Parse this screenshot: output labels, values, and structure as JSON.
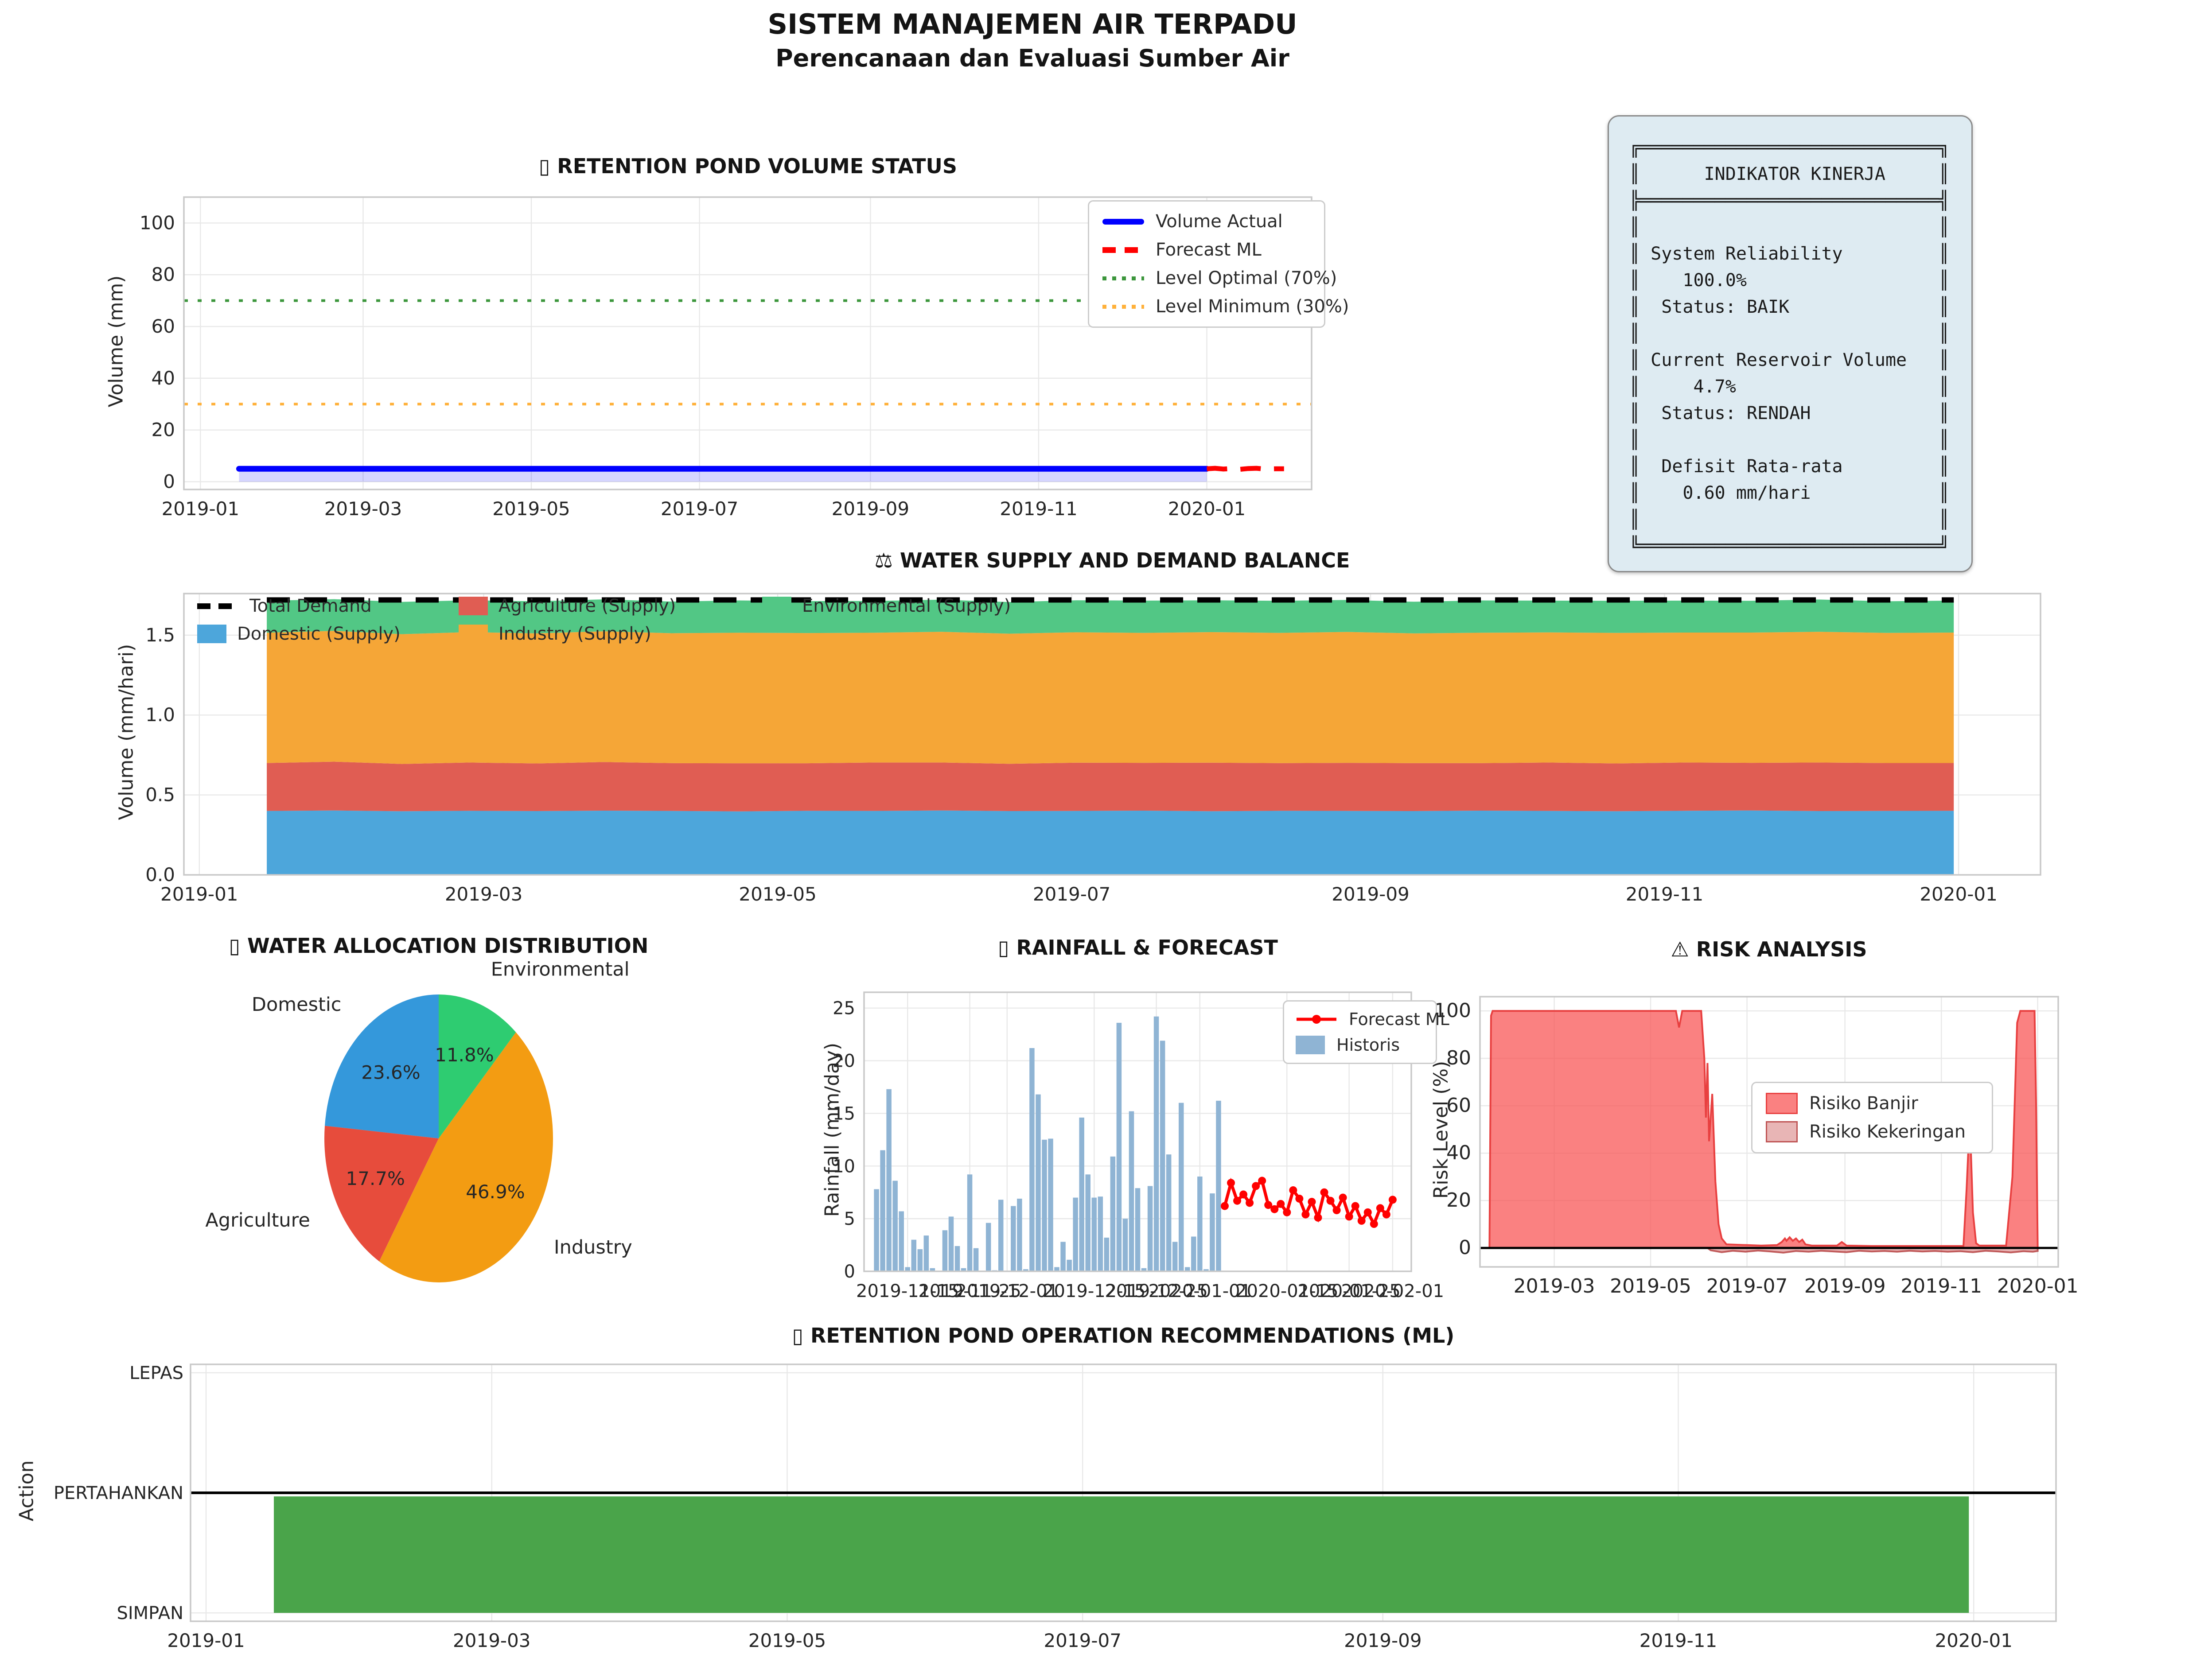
{
  "header": {
    "title": "SISTEM MANAJEMEN AIR TERPADU",
    "subtitle": "Perencanaan dan Evaluasi Sumber Air"
  },
  "indicator_panel": {
    "lines": [
      "╔════════════════════════════╗",
      "║      INDIKATOR KINERJA     ║",
      "╠════════════════════════════╣",
      "║                            ║",
      "║ System Reliability         ║",
      "║    100.0%                  ║",
      "║  Status: BAIK              ║",
      "║                            ║",
      "║ Current Reservoir Volume   ║",
      "║     4.7%                   ║",
      "║  Status: RENDAH            ║",
      "║                            ║",
      "║  Defisit Rata-rata         ║",
      "║    0.60 mm/hari            ║",
      "║                            ║",
      "╚════════════════════════════╝"
    ],
    "system_reliability": "100.0%",
    "reliability_status": "BAIK",
    "current_reservoir_volume": "4.7%",
    "reservoir_status": "RENDAH",
    "average_deficit": "0.60 mm/hari"
  },
  "chart_data": [
    {
      "id": "volume",
      "type": "line",
      "title": "▯ RETENTION POND VOLUME STATUS",
      "ylabel": "Volume (mm)",
      "ylim": [
        -3,
        110
      ],
      "yticks": [
        {
          "label": "0",
          "v": 0
        },
        {
          "label": "20",
          "v": 20
        },
        {
          "label": "40",
          "v": 40
        },
        {
          "label": "60",
          "v": 60
        },
        {
          "label": "80",
          "v": 80
        },
        {
          "label": "100",
          "v": 100
        }
      ],
      "xticks": [
        {
          "label": "2019-01",
          "d": 0
        },
        {
          "label": "2019-03",
          "d": 59
        },
        {
          "label": "2019-05",
          "d": 120
        },
        {
          "label": "2019-07",
          "d": 181
        },
        {
          "label": "2019-09",
          "d": 243
        },
        {
          "label": "2019-11",
          "d": 304
        },
        {
          "label": "2020-01",
          "d": 365
        }
      ],
      "series": {
        "actual": {
          "label": "Volume Actual",
          "color": "#0000ff",
          "fill": "rgba(0,0,255,0.16)",
          "points": [
            [
              14,
              5.0
            ],
            [
              365,
              5.0
            ]
          ]
        },
        "forecast": {
          "label": "Forecast ML",
          "color": "#ff0000",
          "points": [
            [
              365,
              5.0
            ],
            [
              368,
              5.2
            ],
            [
              371,
              4.9
            ],
            [
              374,
              5.1
            ],
            [
              377,
              4.8
            ],
            [
              380,
              5.1
            ],
            [
              383,
              5.2
            ],
            [
              386,
              4.9
            ],
            [
              390,
              5.0
            ],
            [
              393,
              5.0
            ]
          ]
        },
        "optimal": {
          "label": "Level Optimal (70%)",
          "color": "#3c963c",
          "value": 70
        },
        "minimum": {
          "label": "Level Minimum (30%)",
          "color": "#ffb13b",
          "value": 30
        }
      }
    },
    {
      "id": "balance",
      "type": "stacked-area",
      "title": "⚖ WATER SUPPLY AND DEMAND BALANCE",
      "ylabel": "Volume (mm/hari)",
      "ylim": [
        0,
        1.76
      ],
      "yticks": [
        {
          "label": "0.0",
          "v": 0
        },
        {
          "label": "0.5",
          "v": 0.5
        },
        {
          "label": "1.0",
          "v": 1.0
        },
        {
          "label": "1.5",
          "v": 1.5
        }
      ],
      "xticks": [
        {
          "label": "2019-01",
          "d": 0
        },
        {
          "label": "2019-03",
          "d": 59
        },
        {
          "label": "2019-05",
          "d": 120
        },
        {
          "label": "2019-07",
          "d": 181
        },
        {
          "label": "2019-09",
          "d": 243
        },
        {
          "label": "2019-11",
          "d": 304
        },
        {
          "label": "2020-01",
          "d": 365
        }
      ],
      "days": [
        14,
        28,
        42,
        56,
        70,
        84,
        98,
        112,
        126,
        140,
        154,
        168,
        182,
        196,
        210,
        224,
        238,
        252,
        266,
        280,
        294,
        308,
        322,
        336,
        350,
        364
      ],
      "series": [
        {
          "label": "Domestic (Supply)",
          "color": "#4da6db",
          "values": [
            0.4,
            0.403,
            0.398,
            0.401,
            0.399,
            0.402,
            0.4,
            0.397,
            0.401,
            0.4,
            0.403,
            0.399,
            0.4,
            0.402,
            0.398,
            0.401,
            0.4,
            0.399,
            0.402,
            0.4,
            0.398,
            0.401,
            0.403,
            0.399,
            0.4,
            0.401
          ]
        },
        {
          "label": "Agriculture (Supply)",
          "color": "#e05d53",
          "values": [
            0.3,
            0.305,
            0.296,
            0.302,
            0.298,
            0.304,
            0.299,
            0.301,
            0.297,
            0.303,
            0.3,
            0.296,
            0.302,
            0.299,
            0.304,
            0.298,
            0.301,
            0.3,
            0.297,
            0.303,
            0.299,
            0.302,
            0.298,
            0.304,
            0.3,
            0.299
          ]
        },
        {
          "label": "Industry (Supply)",
          "color": "#f5a637",
          "values": [
            0.815,
            0.819,
            0.812,
            0.816,
            0.814,
            0.818,
            0.813,
            0.817,
            0.815,
            0.812,
            0.818,
            0.814,
            0.816,
            0.813,
            0.817,
            0.815,
            0.819,
            0.812,
            0.816,
            0.814,
            0.817,
            0.813,
            0.815,
            0.818,
            0.814,
            0.816
          ]
        },
        {
          "label": "Environmental (Supply)",
          "color": "#52c785",
          "values": [
            0.2,
            0.198,
            0.202,
            0.199,
            0.201,
            0.2,
            0.198,
            0.202,
            0.2,
            0.199,
            0.201,
            0.198,
            0.2,
            0.202,
            0.199,
            0.201,
            0.2,
            0.198,
            0.202,
            0.199,
            0.201,
            0.2,
            0.199,
            0.202,
            0.198,
            0.2
          ]
        }
      ],
      "total_demand": {
        "label": "Total Demand",
        "color": "#000000",
        "value": 1.72
      }
    },
    {
      "id": "allocation",
      "type": "pie",
      "title": "▯ WATER ALLOCATION DISTRIBUTION",
      "start_angle": 90,
      "counterclock": true,
      "slices": [
        {
          "label": "Domestic",
          "pct": 23.6,
          "pct_label": "23.6%",
          "color": "#3498db"
        },
        {
          "label": "Agriculture",
          "pct": 17.7,
          "pct_label": "17.7%",
          "color": "#e74c3c"
        },
        {
          "label": "Industry",
          "pct": 46.9,
          "pct_label": "46.9%",
          "color": "#f39c12"
        },
        {
          "label": "Environmental",
          "pct": 11.8,
          "pct_label": "11.8%",
          "color": "#2ecc71"
        }
      ]
    },
    {
      "id": "rainfall",
      "type": "bar+line",
      "title": "▯ RAINFALL & FORECAST",
      "ylabel": "Rainfall (mm/day)",
      "ylim": [
        0,
        26.5
      ],
      "yticks": [
        {
          "label": "0",
          "v": 0
        },
        {
          "label": "5",
          "v": 5
        },
        {
          "label": "10",
          "v": 10
        },
        {
          "label": "15",
          "v": 15
        },
        {
          "label": "20",
          "v": 20
        },
        {
          "label": "25",
          "v": 25
        }
      ],
      "xticks": [
        {
          "label": "2019-11-15",
          "d": 5
        },
        {
          "label": "2019-11-25",
          "d": 15
        },
        {
          "label": "2019-12-01",
          "d": 21
        },
        {
          "label": "2019-12-15",
          "d": 35
        },
        {
          "label": "2019-12-25",
          "d": 45
        },
        {
          "label": "2020-01-01",
          "d": 52
        },
        {
          "label": "2020-01-15",
          "d": 66
        },
        {
          "label": "2020-01-25",
          "d": 76
        },
        {
          "label": "2020-02-01",
          "d": 83
        }
      ],
      "bars": {
        "label": "Historis",
        "color": "#8fb4d4",
        "start_day": 0,
        "values": [
          7.8,
          11.5,
          17.3,
          8.6,
          5.7,
          0.4,
          3.0,
          2.1,
          3.4,
          0.3,
          0.0,
          3.9,
          5.2,
          2.4,
          0.3,
          9.2,
          2.2,
          0.0,
          4.6,
          0.1,
          6.8,
          0.0,
          6.2,
          6.9,
          0.2,
          21.2,
          16.8,
          12.5,
          12.6,
          0.4,
          2.8,
          1.1,
          7.0,
          14.6,
          9.2,
          7.0,
          7.1,
          3.2,
          10.9,
          23.6,
          5.0,
          15.2,
          7.9,
          0.3,
          8.1,
          24.2,
          21.9,
          11.1,
          2.8,
          16.0,
          0.4,
          3.3,
          9.0,
          0.2,
          7.4,
          16.2
        ]
      },
      "forecast": {
        "label": "Forecast ML",
        "color": "#ff0000",
        "start_day": 56,
        "values": [
          6.2,
          8.4,
          6.7,
          7.3,
          6.5,
          8.1,
          8.6,
          6.3,
          5.9,
          6.4,
          5.6,
          7.7,
          6.9,
          5.4,
          6.6,
          5.1,
          7.5,
          6.7,
          5.8,
          7.0,
          5.2,
          6.2,
          4.8,
          5.6,
          4.5,
          6.0,
          5.4,
          6.8
        ]
      }
    },
    {
      "id": "risk",
      "type": "area",
      "title": "⚠ RISK ANALYSIS",
      "ylabel": "Risk Level (%)",
      "ylim": [
        -8,
        106
      ],
      "yticks": [
        {
          "label": "0",
          "v": 0
        },
        {
          "label": "20",
          "v": 20
        },
        {
          "label": "40",
          "v": 40
        },
        {
          "label": "60",
          "v": 60
        },
        {
          "label": "80",
          "v": 80
        },
        {
          "label": "100",
          "v": 100
        }
      ],
      "xticks": [
        {
          "label": "2019-03",
          "d": 59
        },
        {
          "label": "2019-05",
          "d": 120
        },
        {
          "label": "2019-07",
          "d": 181
        },
        {
          "label": "2019-09",
          "d": 243
        },
        {
          "label": "2019-11",
          "d": 304
        },
        {
          "label": "2020-01",
          "d": 365
        }
      ],
      "series": [
        {
          "label": "Risiko Banjir",
          "color": "rgba(248,80,80,0.72)",
          "edge": "#e84040",
          "points": [
            [
              18,
              0
            ],
            [
              19,
              98
            ],
            [
              20,
              100
            ],
            [
              130,
              100
            ],
            [
              136,
              100
            ],
            [
              138,
              93
            ],
            [
              140,
              100
            ],
            [
              152,
              100
            ],
            [
              154,
              80
            ],
            [
              155,
              55
            ],
            [
              156,
              78
            ],
            [
              157,
              45
            ],
            [
              159,
              65
            ],
            [
              161,
              28
            ],
            [
              163,
              10
            ],
            [
              165,
              4
            ],
            [
              168,
              1.5
            ],
            [
              190,
              1
            ],
            [
              200,
              1.2
            ],
            [
              203,
              2.5
            ],
            [
              205,
              4
            ],
            [
              206,
              3
            ],
            [
              208,
              4.5
            ],
            [
              210,
              3
            ],
            [
              212,
              4
            ],
            [
              214,
              2.5
            ],
            [
              216,
              3.5
            ],
            [
              218,
              1.5
            ],
            [
              222,
              1
            ],
            [
              238,
              1
            ],
            [
              241,
              2.5
            ],
            [
              244,
              1
            ],
            [
              260,
              0.8
            ],
            [
              300,
              0.8
            ],
            [
              318,
              0.8
            ],
            [
              320,
              25
            ],
            [
              322,
              55
            ],
            [
              324,
              15
            ],
            [
              326,
              2
            ],
            [
              328,
              1
            ],
            [
              345,
              1
            ],
            [
              349,
              30
            ],
            [
              352,
              95
            ],
            [
              354,
              100
            ],
            [
              363,
              100
            ],
            [
              364,
              60
            ],
            [
              365,
              0
            ]
          ]
        },
        {
          "label": "Risiko Kekeringan",
          "color": "rgba(205,92,92,0.45)",
          "edge": "rgba(180,60,60,0.8)",
          "points": [
            [
              156,
              0
            ],
            [
              158,
              -1.0
            ],
            [
              165,
              -1.8
            ],
            [
              172,
              -1.2
            ],
            [
              180,
              -1.6
            ],
            [
              188,
              -1.1
            ],
            [
              196,
              -1.5
            ],
            [
              204,
              -2.0
            ],
            [
              212,
              -1.3
            ],
            [
              220,
              -1.6
            ],
            [
              228,
              -1.2
            ],
            [
              236,
              -1.5
            ],
            [
              244,
              -1.8
            ],
            [
              252,
              -1.2
            ],
            [
              260,
              -1.5
            ],
            [
              268,
              -1.3
            ],
            [
              276,
              -1.6
            ],
            [
              284,
              -1.2
            ],
            [
              292,
              -1.5
            ],
            [
              300,
              -1.3
            ],
            [
              308,
              -1.6
            ],
            [
              316,
              -1.4
            ],
            [
              324,
              -1.8
            ],
            [
              332,
              -1.2
            ],
            [
              340,
              -1.5
            ],
            [
              348,
              -1.9
            ],
            [
              356,
              -1.4
            ],
            [
              362,
              -1.6
            ],
            [
              365,
              -1.3
            ],
            [
              365,
              0
            ]
          ]
        }
      ],
      "zero_line_color": "#000000"
    },
    {
      "id": "recommendation",
      "type": "step-area",
      "title": "▯ RETENTION POND OPERATION RECOMMENDATIONS (ML)",
      "ylabel": "Action",
      "ylim": [
        -0.07,
        2.07
      ],
      "ycategories": [
        {
          "label": "SIMPAN",
          "v": 0
        },
        {
          "label": "PERTAHANKAN",
          "v": 1
        },
        {
          "label": "LEPAS",
          "v": 2
        }
      ],
      "xticks": [
        {
          "label": "2019-01",
          "d": 0
        },
        {
          "label": "2019-03",
          "d": 59
        },
        {
          "label": "2019-05",
          "d": 120
        },
        {
          "label": "2019-07",
          "d": 181
        },
        {
          "label": "2019-09",
          "d": 243
        },
        {
          "label": "2019-11",
          "d": 304
        },
        {
          "label": "2020-01",
          "d": 365
        }
      ],
      "fill": {
        "color": "#4aa44a",
        "start_day": 14,
        "end_day": 364,
        "value": 0.97,
        "action": "SIMPAN"
      },
      "baseline": {
        "value": 1,
        "color": "#000000"
      }
    }
  ]
}
